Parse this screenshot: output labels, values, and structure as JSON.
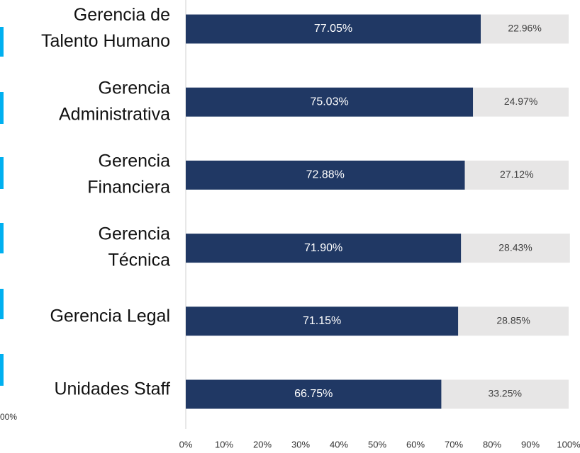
{
  "chart_data": {
    "type": "stacked_barh",
    "categories": [
      [
        "Gerencia de",
        "Talento Humano"
      ],
      [
        "Gerencia",
        "Administrativa"
      ],
      [
        "Gerencia",
        "Financiera"
      ],
      [
        "Gerencia",
        "Técnica"
      ],
      [
        "Gerencia Legal"
      ],
      [
        "Unidades Staff"
      ]
    ],
    "series": [
      {
        "color": "#203864",
        "values": [
          77.05,
          75.03,
          72.88,
          71.9,
          71.15,
          66.75
        ],
        "value_labels": [
          "77.05%",
          "75.03%",
          "72.88%",
          "71.90%",
          "71.15%",
          "66.75%"
        ]
      },
      {
        "color": "#e7e6e6",
        "values": [
          22.96,
          24.97,
          27.12,
          28.43,
          28.85,
          33.25
        ],
        "value_labels": [
          "22.96%",
          "24.97%",
          "27.12%",
          "28.43%",
          "28.85%",
          "33.25%"
        ]
      }
    ],
    "xlim": [
      0,
      100
    ],
    "xticks": [
      {
        "value": 0,
        "label": "0%"
      },
      {
        "value": 10,
        "label": "10%"
      },
      {
        "value": 20,
        "label": "20%"
      },
      {
        "value": 30,
        "label": "30%"
      },
      {
        "value": 40,
        "label": "40%"
      },
      {
        "value": 50,
        "label": "50%"
      },
      {
        "value": 60,
        "label": "60%"
      },
      {
        "value": 70,
        "label": "70%"
      },
      {
        "value": 80,
        "label": "80%"
      },
      {
        "value": 90,
        "label": "90%"
      },
      {
        "value": 100,
        "label": "100%"
      }
    ],
    "annotations": [
      "00%"
    ]
  }
}
